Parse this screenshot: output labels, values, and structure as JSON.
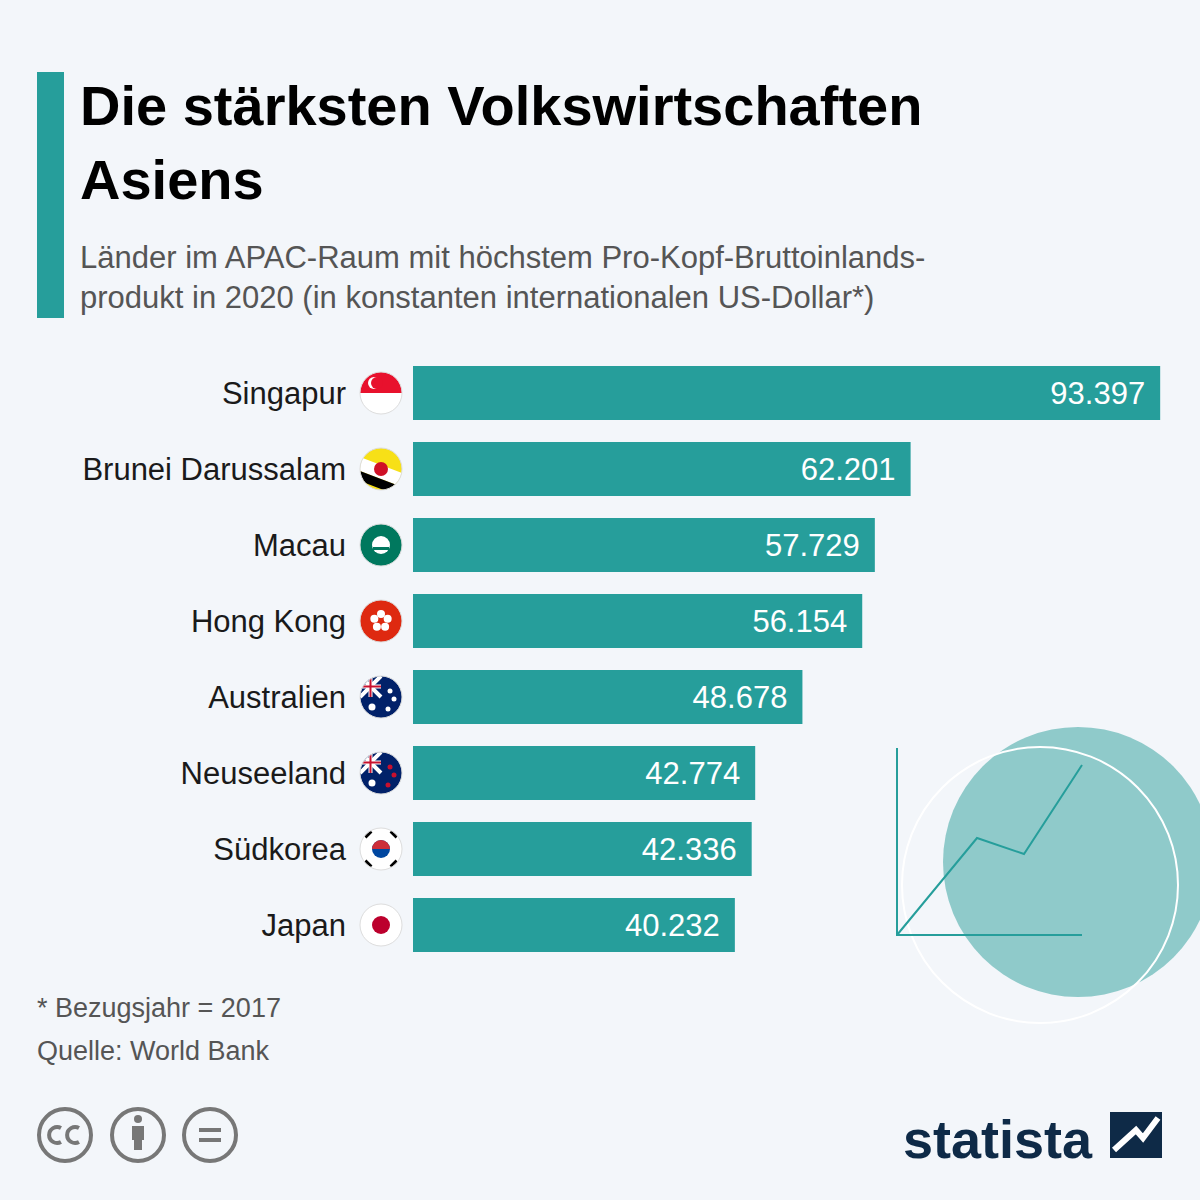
{
  "chart_data": {
    "type": "bar",
    "orientation": "horizontal",
    "title": "Die stärksten Volkswirtschaften Asiens",
    "subtitle": [
      "Länder im APAC-Raum mit höchstem Pro-Kopf-Bruttoinlands-",
      "produkt in 2020 (in konstanten internationalen US-Dollar*)"
    ],
    "categories": [
      "Singapur",
      "Brunei Darussalam",
      "Macau",
      "Hong Kong",
      "Australien",
      "Neuseeland",
      "Südkorea",
      "Japan"
    ],
    "values": [
      93397,
      62201,
      57729,
      56154,
      48678,
      42774,
      42336,
      40232
    ],
    "value_labels": [
      "93.397",
      "62.201",
      "57.729",
      "56.154",
      "48.678",
      "42.774",
      "42.336",
      "40.232"
    ],
    "color": "#269e9b",
    "xlim": [
      0,
      100000
    ],
    "data_labels": true,
    "tick_labels": false,
    "grid": false,
    "footnote": "* Bezugsjahr = 2017",
    "source": "Quelle: World Bank",
    "brand": "statista"
  }
}
